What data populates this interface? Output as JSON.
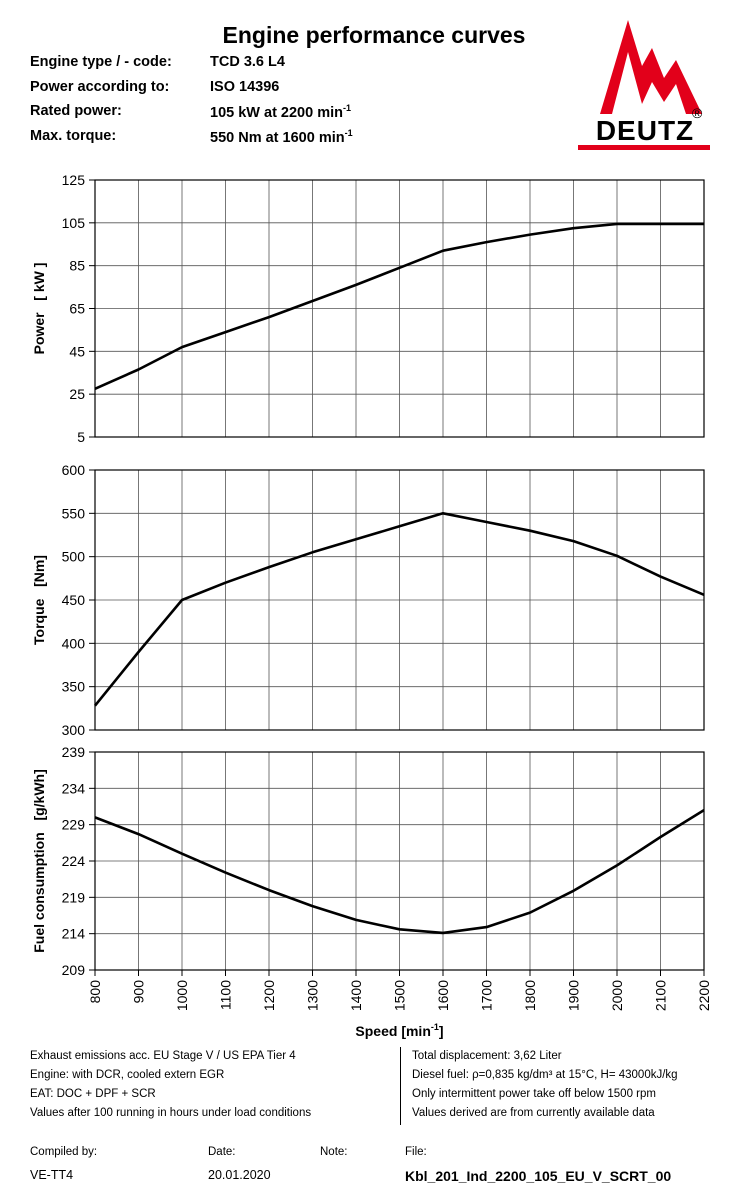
{
  "title": "Engine performance curves",
  "specs": [
    {
      "label": "Engine type / - code:",
      "value": "TCD 3.6 L4",
      "sup": ""
    },
    {
      "label": "Power according to:",
      "value": "ISO 14396",
      "sup": ""
    },
    {
      "label": "Rated power:",
      "value": "105 kW at 2200 min",
      "sup": "-1"
    },
    {
      "label": "Max. torque:",
      "value": "550 Nm at 1600 min",
      "sup": "-1"
    }
  ],
  "logo": {
    "text": "DEUTZ",
    "registered": "®",
    "color": "#e2001a"
  },
  "chart_data": [
    {
      "type": "line",
      "ylabel": "Power   [ kW ]",
      "ylim": [
        5,
        125
      ],
      "yticks": [
        5,
        25,
        45,
        65,
        85,
        105,
        125
      ],
      "x": [
        800,
        900,
        1000,
        1100,
        1200,
        1300,
        1400,
        1500,
        1600,
        1700,
        1800,
        1900,
        2000,
        2100,
        2200
      ],
      "y": [
        27.5,
        36.5,
        47,
        54,
        61,
        68.5,
        76,
        84,
        92,
        96,
        99.5,
        102.5,
        104.5,
        104.5,
        104.5
      ]
    },
    {
      "type": "line",
      "ylabel": "Torque   [Nm]",
      "ylim": [
        300,
        600
      ],
      "yticks": [
        300,
        350,
        400,
        450,
        500,
        550,
        600
      ],
      "x": [
        800,
        900,
        1000,
        1100,
        1200,
        1300,
        1400,
        1500,
        1600,
        1700,
        1800,
        1900,
        2000,
        2100,
        2200
      ],
      "y": [
        328,
        390,
        450,
        470,
        488,
        505,
        520,
        535,
        550,
        540,
        530,
        518,
        501,
        477,
        456
      ]
    },
    {
      "type": "line",
      "ylabel": "Fuel consumption   [g/kWh]",
      "xlabel": "Speed [min",
      "xlabel_sup": "-1",
      "ylim": [
        209,
        239
      ],
      "yticks": [
        209,
        214,
        219,
        224,
        229,
        234,
        239
      ],
      "xticks": [
        800,
        900,
        1000,
        1100,
        1200,
        1300,
        1400,
        1500,
        1600,
        1700,
        1800,
        1900,
        2000,
        2100,
        2200
      ],
      "x": [
        800,
        900,
        1000,
        1100,
        1200,
        1300,
        1400,
        1500,
        1600,
        1700,
        1800,
        1900,
        2000,
        2100,
        2200
      ],
      "y": [
        230,
        227.7,
        225,
        222.4,
        220,
        217.8,
        215.9,
        214.6,
        214.1,
        214.9,
        216.9,
        219.9,
        223.4,
        227.3,
        231
      ]
    }
  ],
  "footer_left": [
    "Exhaust emissions acc. EU Stage V / US EPA Tier 4",
    "Engine: with DCR, cooled extern EGR",
    "EAT: DOC + DPF + SCR",
    "Values after 100 running in hours under load conditions"
  ],
  "footer_right": [
    "Total displacement:  3,62  Liter",
    "Diesel fuel: ρ=0,835 kg/dm³ at 15°C, H= 43000kJ/kg",
    "Only intermittent power take off below 1500 rpm",
    "Values derived are from currently available data"
  ],
  "compiled": {
    "label": "Compiled by:",
    "value": "VE-TT4"
  },
  "date": {
    "label": "Date:",
    "value": "20.01.2020"
  },
  "note": {
    "label": "Note:"
  },
  "file": {
    "label": "File:",
    "value": "Kbl_201_Ind_2200_105_EU_V_SCRT_00"
  }
}
